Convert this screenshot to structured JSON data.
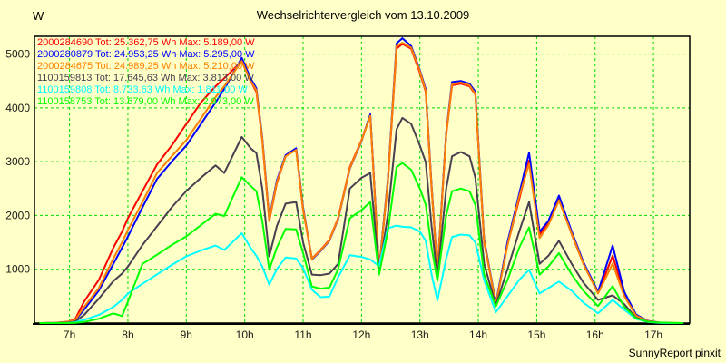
{
  "ui": {
    "title": "Wechselrichtervergleich vom 13.10.2009",
    "y_axis_unit": "W",
    "watermark": "SunnyReport pinxit"
  },
  "chart_data": {
    "type": "line",
    "title": "Wechselrichtervergleich vom 13.10.2009",
    "footer": "SunnyReport pinxit",
    "xlabel": "",
    "ylabel": "W",
    "grid": true,
    "grid_color": "#00dd00",
    "background_color": "#ffffc8",
    "border_color": "#000000",
    "legend_position": "top-left",
    "xlim": [
      6.4,
      17.62
    ],
    "ylim": [
      0,
      5330
    ],
    "x_ticks": [
      {
        "value": 7,
        "label": "7h"
      },
      {
        "value": 8,
        "label": "8h"
      },
      {
        "value": 9,
        "label": "9h"
      },
      {
        "value": 10,
        "label": "10h"
      },
      {
        "value": 11,
        "label": "11h"
      },
      {
        "value": 12,
        "label": "12h"
      },
      {
        "value": 13,
        "label": "13h"
      },
      {
        "value": 14,
        "label": "14h"
      },
      {
        "value": 15,
        "label": "15h"
      },
      {
        "value": 16,
        "label": "16h"
      },
      {
        "value": 17,
        "label": "17h"
      }
    ],
    "y_ticks": [
      {
        "value": 1000,
        "label": "1000"
      },
      {
        "value": 2000,
        "label": "2000"
      },
      {
        "value": 3000,
        "label": "3000"
      },
      {
        "value": 4000,
        "label": "4000"
      },
      {
        "value": 5000,
        "label": "5000"
      }
    ],
    "x_unit": "hour of day",
    "x": [
      6.5,
      6.75,
      7.0,
      7.1,
      7.25,
      7.5,
      7.75,
      7.9,
      8.0,
      8.25,
      8.5,
      8.75,
      9.0,
      9.25,
      9.5,
      9.65,
      9.95,
      10.1,
      10.2,
      10.3,
      10.42,
      10.55,
      10.7,
      10.88,
      11.0,
      11.15,
      11.3,
      11.45,
      11.6,
      11.8,
      12.0,
      12.15,
      12.3,
      12.45,
      12.6,
      12.7,
      12.85,
      13.0,
      13.1,
      13.2,
      13.3,
      13.45,
      13.55,
      13.7,
      13.85,
      13.95,
      14.1,
      14.3,
      14.5,
      14.7,
      14.87,
      15.05,
      15.2,
      15.38,
      15.6,
      15.8,
      16.05,
      16.3,
      16.5,
      16.7,
      16.9,
      17.1,
      17.3,
      17.5
    ],
    "series": [
      {
        "name": "2000284690",
        "label": "2000284690 Tot: 25.362,75 Wh Max: 5.189,00 W",
        "total_wh": "25.362,75",
        "max_w": "5.189,00",
        "color": "#ff0000",
        "values": [
          0,
          5,
          30,
          80,
          400,
          800,
          1400,
          1700,
          1950,
          2450,
          2950,
          3300,
          3700,
          4100,
          4400,
          4550,
          4870,
          4500,
          4300,
          3400,
          1900,
          2600,
          3100,
          3230,
          2100,
          1200,
          1360,
          1550,
          1950,
          2900,
          3400,
          3860,
          980,
          2600,
          5100,
          5189,
          5100,
          4650,
          4300,
          2500,
          960,
          3500,
          4420,
          4450,
          4400,
          4250,
          1500,
          360,
          1450,
          2300,
          3020,
          1650,
          1850,
          2320,
          1650,
          1100,
          560,
          1250,
          550,
          150,
          40,
          10,
          0,
          0
        ]
      },
      {
        "name": "2000280879",
        "label": "2000280879 Tot: 24.953,25 Wh Max: 5.295,00 W",
        "total_wh": "24.953,25",
        "max_w": "5.295,00",
        "color": "#0000ff",
        "values": [
          0,
          5,
          20,
          50,
          250,
          600,
          1100,
          1400,
          1610,
          2150,
          2680,
          3000,
          3300,
          3700,
          4100,
          4350,
          4930,
          4550,
          4365,
          3450,
          1950,
          2650,
          3120,
          3250,
          2150,
          1180,
          1340,
          1530,
          1930,
          2870,
          3380,
          3880,
          1000,
          2650,
          5200,
          5295,
          5150,
          4700,
          4350,
          2550,
          980,
          3550,
          4480,
          4500,
          4450,
          4300,
          1550,
          370,
          1500,
          2400,
          3170,
          1700,
          1900,
          2370,
          1700,
          1130,
          580,
          1440,
          580,
          160,
          40,
          10,
          0,
          0
        ]
      },
      {
        "name": "2000284675",
        "label": "2000284675 Tot: 24.989,25 Wh Max: 5.210,00 W",
        "total_wh": "24.989,25",
        "max_w": "5.210,00",
        "color": "#ff8000",
        "values": [
          0,
          5,
          25,
          60,
          300,
          650,
          1200,
          1500,
          1730,
          2250,
          2790,
          3100,
          3400,
          3800,
          4200,
          4400,
          4870,
          4500,
          4330,
          3420,
          1920,
          2620,
          3100,
          3220,
          2120,
          1190,
          1350,
          1540,
          1940,
          2880,
          3390,
          3850,
          970,
          2620,
          5150,
          5210,
          5120,
          4680,
          4320,
          2520,
          950,
          3520,
          4440,
          4470,
          4420,
          4260,
          1520,
          350,
          1440,
          2350,
          2960,
          1580,
          1820,
          2280,
          1660,
          1100,
          550,
          1105,
          500,
          140,
          35,
          10,
          5,
          0
        ]
      },
      {
        "name": "1100159813",
        "label": "1100159813 Tot: 17.645,63 Wh Max: 3.813,00 W",
        "total_wh": "17.645,63",
        "max_w": "3.813,00",
        "color": "#484050",
        "values": [
          0,
          0,
          10,
          30,
          150,
          450,
          780,
          920,
          1050,
          1450,
          1800,
          2150,
          2455,
          2700,
          2930,
          2790,
          3460,
          3250,
          3160,
          2500,
          1240,
          1800,
          2220,
          2250,
          1500,
          900,
          890,
          920,
          1100,
          2500,
          2700,
          2790,
          950,
          2000,
          3600,
          3813,
          3700,
          3300,
          2990,
          1800,
          850,
          2500,
          3100,
          3180,
          3100,
          2700,
          1100,
          330,
          1000,
          1700,
          2250,
          1100,
          1250,
          1530,
          1100,
          750,
          430,
          515,
          350,
          100,
          25,
          5,
          0,
          0
        ]
      },
      {
        "name": "1100159808",
        "label": "1100159808 Tot: 8.733,63 Wh Max: 1.811,00 W",
        "total_wh": "8.733,63",
        "max_w": "1.811,00",
        "color": "#00ffff",
        "values": [
          0,
          0,
          5,
          15,
          60,
          150,
          300,
          430,
          550,
          730,
          905,
          1080,
          1240,
          1350,
          1440,
          1360,
          1670,
          1400,
          1250,
          1050,
          715,
          1000,
          1220,
          1200,
          1020,
          620,
          480,
          490,
          850,
          1260,
          1230,
          1180,
          1060,
          1760,
          1811,
          1790,
          1780,
          1700,
          1530,
          900,
          420,
          1200,
          1600,
          1645,
          1630,
          1500,
          800,
          200,
          500,
          800,
          990,
          550,
          650,
          770,
          600,
          380,
          180,
          430,
          250,
          80,
          20,
          5,
          0,
          0
        ]
      },
      {
        "name": "1100158753",
        "label": "1100158753 Tot: 13.679,00 Wh Max: 2.973,00 W",
        "total_wh": "13.679,00",
        "max_w": "2.973,00",
        "color": "#00ff00",
        "values": [
          0,
          0,
          0,
          5,
          20,
          80,
          180,
          130,
          400,
          1100,
          1270,
          1450,
          1610,
          1820,
          2030,
          1990,
          2710,
          2550,
          2450,
          1900,
          990,
          1400,
          1750,
          1740,
          1300,
          680,
          640,
          660,
          1000,
          1950,
          2100,
          2250,
          900,
          1700,
          2900,
          2973,
          2850,
          2500,
          2200,
          1400,
          790,
          2000,
          2450,
          2500,
          2450,
          2200,
          900,
          310,
          800,
          1400,
          1780,
          900,
          1050,
          1300,
          900,
          600,
          315,
          685,
          300,
          90,
          25,
          10,
          5,
          0
        ]
      }
    ]
  }
}
